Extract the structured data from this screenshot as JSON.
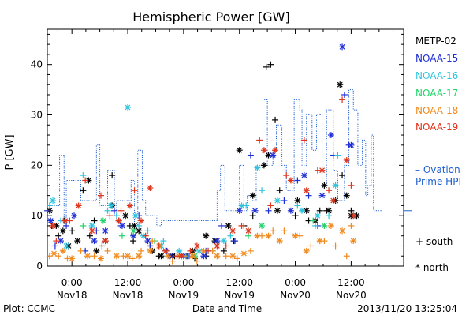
{
  "chart_data": {
    "type": "scatter",
    "title": "Hemispheric Power [GW]",
    "ylabel": "P [GW]",
    "xlabel": "Date and Time",
    "ylim": [
      0,
      47
    ],
    "yticks": [
      0,
      10,
      20,
      30,
      40
    ],
    "xlim": [
      -0.22,
      2.97
    ],
    "x_units": "days since 2013-11-18 00:00",
    "xticks": [
      {
        "x": 0.0,
        "top": "0:00",
        "bottom": "Nov18"
      },
      {
        "x": 0.5,
        "top": "12:00",
        "bottom": "Nov18"
      },
      {
        "x": 1.0,
        "top": "0:00",
        "bottom": "Nov19"
      },
      {
        "x": 1.5,
        "top": "12:00",
        "bottom": "Nov19"
      },
      {
        "x": 2.0,
        "top": "0:00",
        "bottom": "Nov20"
      },
      {
        "x": 2.5,
        "top": "12:00",
        "bottom": "Nov20"
      }
    ],
    "legend": {
      "placement": "right",
      "entries": [
        {
          "name": "METP-02",
          "color": "#000000"
        },
        {
          "name": "NOAA-15",
          "color": "#1f2fd6"
        },
        {
          "name": "NOAA-16",
          "color": "#2ec4df"
        },
        {
          "name": "NOAA-17",
          "color": "#22d46b"
        },
        {
          "name": "NOAA-18",
          "color": "#f08a1e"
        },
        {
          "name": "NOAA-19",
          "color": "#e0341c"
        }
      ],
      "ovation_label_1": "– Ovation",
      "ovation_label_2": "Prime HPI",
      "ovation_color": "#1e5fd0",
      "marker_south_label": "+ south",
      "marker_north_label": "* north"
    },
    "ovation_hpi": {
      "x": [
        -0.2,
        -0.13,
        -0.11,
        -0.07,
        -0.05,
        0.05,
        0.08,
        0.22,
        0.25,
        0.28,
        0.32,
        0.38,
        0.4,
        0.5,
        0.53,
        0.56,
        0.59,
        0.63,
        0.66,
        0.76,
        0.8,
        0.95,
        1.3,
        1.33,
        1.37,
        1.48,
        1.5,
        1.54,
        1.57,
        1.62,
        1.65,
        1.71,
        1.75,
        1.8,
        1.83,
        1.88,
        1.92,
        1.99,
        2.04,
        2.06,
        2.1,
        2.15,
        2.19,
        2.24,
        2.28,
        2.34,
        2.38,
        2.44,
        2.48,
        2.52,
        2.56,
        2.58,
        2.6,
        2.63,
        2.65,
        2.68,
        2.7,
        2.72
      ],
      "y": [
        12,
        12,
        22,
        8,
        17,
        17,
        13,
        24,
        12,
        12,
        19,
        10,
        13,
        13,
        17,
        8,
        23,
        13,
        10,
        8,
        9,
        9,
        15,
        20,
        11,
        11,
        20,
        11,
        14,
        13,
        20,
        33,
        20,
        23,
        28,
        20,
        15,
        33,
        31,
        20,
        30,
        23,
        30,
        16,
        31,
        19,
        13,
        20,
        35,
        31,
        20,
        20,
        25,
        14,
        16,
        26,
        11,
        11
      ]
    },
    "series": [
      {
        "name": "METP-02",
        "color": "#000000",
        "south": [
          [
            -0.18,
            8
          ],
          [
            -0.12,
            6
          ],
          [
            -0.07,
            9
          ],
          [
            0.0,
            7
          ],
          [
            0.1,
            15
          ],
          [
            0.16,
            6
          ],
          [
            0.2,
            9
          ],
          [
            0.27,
            4
          ],
          [
            0.36,
            18
          ],
          [
            0.42,
            9
          ],
          [
            0.52,
            8
          ],
          [
            0.55,
            5
          ],
          [
            0.7,
            4
          ],
          [
            0.78,
            2
          ],
          [
            0.84,
            3
          ],
          [
            0.92,
            2
          ],
          [
            1.03,
            2
          ],
          [
            1.1,
            1.5
          ],
          [
            1.2,
            2
          ],
          [
            1.36,
            3
          ],
          [
            1.45,
            5
          ],
          [
            1.54,
            8
          ],
          [
            1.62,
            10
          ],
          [
            1.74,
            39.5
          ],
          [
            1.78,
            40
          ],
          [
            1.82,
            29
          ],
          [
            1.86,
            15
          ],
          [
            2.0,
            10
          ],
          [
            2.12,
            9
          ],
          [
            2.22,
            11
          ],
          [
            2.28,
            11
          ],
          [
            2.34,
            13
          ],
          [
            2.42,
            18
          ],
          [
            2.5,
            11
          ]
        ],
        "north": [
          [
            -0.2,
            11
          ],
          [
            -0.14,
            8
          ],
          [
            -0.08,
            7
          ],
          [
            -0.03,
            4
          ],
          [
            0.05,
            5
          ],
          [
            0.15,
            17
          ],
          [
            0.22,
            3
          ],
          [
            0.3,
            5
          ],
          [
            0.36,
            12
          ],
          [
            0.48,
            10
          ],
          [
            0.56,
            8
          ],
          [
            0.6,
            7
          ],
          [
            0.72,
            3
          ],
          [
            0.8,
            2
          ],
          [
            0.9,
            2
          ],
          [
            0.98,
            2
          ],
          [
            1.08,
            3
          ],
          [
            1.2,
            6
          ],
          [
            1.28,
            5
          ],
          [
            1.4,
            8
          ],
          [
            1.5,
            23
          ],
          [
            1.62,
            14
          ],
          [
            1.72,
            20
          ],
          [
            1.76,
            22
          ],
          [
            1.84,
            11
          ],
          [
            2.02,
            13
          ],
          [
            2.1,
            11
          ],
          [
            2.18,
            9
          ],
          [
            2.26,
            16
          ],
          [
            2.3,
            11
          ],
          [
            2.36,
            13
          ],
          [
            2.4,
            36
          ],
          [
            2.46,
            14
          ],
          [
            2.5,
            10
          ],
          [
            2.55,
            10
          ]
        ]
      },
      {
        "name": "NOAA-15",
        "color": "#1f2fd6",
        "south": [
          [
            -0.22,
            11
          ],
          [
            -0.15,
            4
          ],
          [
            -0.05,
            8
          ],
          [
            0.12,
            3
          ],
          [
            0.22,
            7
          ],
          [
            0.38,
            11
          ],
          [
            0.44,
            8
          ],
          [
            0.6,
            10
          ],
          [
            0.7,
            4
          ],
          [
            0.85,
            3
          ],
          [
            1.05,
            2
          ],
          [
            1.2,
            3
          ],
          [
            1.34,
            8
          ],
          [
            1.46,
            5
          ],
          [
            1.6,
            22
          ],
          [
            1.76,
            11
          ],
          [
            1.9,
            13
          ],
          [
            2.02,
            17
          ],
          [
            2.12,
            14
          ],
          [
            2.2,
            8
          ],
          [
            2.34,
            22
          ],
          [
            2.44,
            34
          ],
          [
            2.48,
            24
          ]
        ],
        "north": [
          [
            -0.19,
            9
          ],
          [
            -0.1,
            5
          ],
          [
            0.02,
            10
          ],
          [
            0.2,
            5
          ],
          [
            0.3,
            7
          ],
          [
            0.45,
            8
          ],
          [
            0.55,
            6
          ],
          [
            0.68,
            5
          ],
          [
            0.88,
            2
          ],
          [
            1.0,
            2
          ],
          [
            1.18,
            2
          ],
          [
            1.3,
            5
          ],
          [
            1.5,
            11
          ],
          [
            1.64,
            11
          ],
          [
            1.8,
            22
          ],
          [
            1.96,
            11
          ],
          [
            2.08,
            18
          ],
          [
            2.24,
            14
          ],
          [
            2.32,
            26
          ],
          [
            2.42,
            43.5
          ],
          [
            2.5,
            24
          ]
        ]
      },
      {
        "name": "NOAA-16",
        "color": "#2ec4df",
        "south": [
          [
            -0.2,
            12
          ],
          [
            -0.1,
            9
          ],
          [
            0.1,
            18
          ],
          [
            0.32,
            11
          ],
          [
            0.4,
            10
          ],
          [
            0.6,
            8
          ],
          [
            0.68,
            7
          ],
          [
            0.82,
            5
          ],
          [
            1.02,
            2
          ],
          [
            1.22,
            3
          ],
          [
            1.42,
            6
          ],
          [
            1.56,
            12
          ],
          [
            1.7,
            15
          ],
          [
            2.02,
            12
          ],
          [
            2.18,
            8
          ],
          [
            2.3,
            10
          ],
          [
            2.38,
            22
          ]
        ],
        "north": [
          [
            -0.17,
            13
          ],
          [
            -0.05,
            4
          ],
          [
            0.18,
            8
          ],
          [
            0.35,
            12
          ],
          [
            0.5,
            31.5
          ],
          [
            0.57,
            10
          ],
          [
            0.64,
            6
          ],
          [
            0.8,
            4
          ],
          [
            0.96,
            3
          ],
          [
            1.14,
            3
          ],
          [
            1.36,
            5
          ],
          [
            1.52,
            12
          ],
          [
            1.66,
            19.5
          ],
          [
            1.84,
            13
          ],
          [
            2.06,
            11
          ],
          [
            2.2,
            10
          ],
          [
            2.36,
            16
          ]
        ]
      },
      {
        "name": "NOAA-17",
        "color": "#22d46b",
        "south": [
          [
            0.1,
            8
          ],
          [
            0.45,
            6
          ],
          [
            0.74,
            5
          ],
          [
            1.26,
            3
          ],
          [
            1.58,
            6
          ],
          [
            2.16,
            9
          ]
        ],
        "north": [
          [
            0.28,
            9
          ],
          [
            0.55,
            7
          ],
          [
            1.1,
            2
          ],
          [
            1.7,
            8
          ],
          [
            2.26,
            8
          ]
        ]
      },
      {
        "name": "NOAA-18",
        "color": "#f08a1e",
        "south": [
          [
            -0.2,
            2
          ],
          [
            -0.12,
            2
          ],
          [
            -0.04,
            1.5
          ],
          [
            0.08,
            3
          ],
          [
            0.2,
            2
          ],
          [
            0.32,
            3
          ],
          [
            0.46,
            2
          ],
          [
            0.54,
            1.5
          ],
          [
            0.62,
            3
          ],
          [
            0.72,
            5
          ],
          [
            0.8,
            4
          ],
          [
            0.9,
            1
          ],
          [
            1.0,
            2
          ],
          [
            1.12,
            1
          ],
          [
            1.26,
            3
          ],
          [
            1.38,
            2
          ],
          [
            1.48,
            1.5
          ],
          [
            1.6,
            3
          ],
          [
            1.7,
            6
          ],
          [
            1.8,
            7
          ],
          [
            1.9,
            7
          ],
          [
            2.04,
            6
          ],
          [
            2.14,
            4
          ],
          [
            2.26,
            5
          ],
          [
            2.36,
            4
          ],
          [
            2.46,
            2
          ],
          [
            2.5,
            8
          ]
        ],
        "north": [
          [
            -0.16,
            2.5
          ],
          [
            -0.08,
            3
          ],
          [
            0.0,
            1.5
          ],
          [
            0.14,
            2
          ],
          [
            0.26,
            1.5
          ],
          [
            0.4,
            2
          ],
          [
            0.5,
            2
          ],
          [
            0.6,
            2
          ],
          [
            0.7,
            3
          ],
          [
            0.78,
            4
          ],
          [
            0.86,
            2
          ],
          [
            0.96,
            2
          ],
          [
            1.08,
            2
          ],
          [
            1.18,
            3
          ],
          [
            1.3,
            2
          ],
          [
            1.44,
            2
          ],
          [
            1.54,
            2.5
          ],
          [
            1.66,
            6
          ],
          [
            1.76,
            6
          ],
          [
            1.86,
            5
          ],
          [
            2.0,
            6
          ],
          [
            2.1,
            3
          ],
          [
            2.22,
            5
          ],
          [
            2.32,
            8
          ],
          [
            2.42,
            7
          ],
          [
            2.52,
            5
          ]
        ]
      },
      {
        "name": "NOAA-19",
        "color": "#e0341c",
        "south": [
          [
            -0.14,
            5
          ],
          [
            -0.02,
            9
          ],
          [
            0.12,
            17
          ],
          [
            0.26,
            14
          ],
          [
            0.34,
            10
          ],
          [
            0.44,
            11
          ],
          [
            0.56,
            15
          ],
          [
            0.66,
            6
          ],
          [
            0.78,
            4
          ],
          [
            0.94,
            2
          ],
          [
            1.06,
            3
          ],
          [
            1.22,
            3
          ],
          [
            1.38,
            4
          ],
          [
            1.52,
            8
          ],
          [
            1.68,
            25
          ],
          [
            1.78,
            12
          ],
          [
            1.92,
            18
          ],
          [
            2.08,
            25
          ],
          [
            2.2,
            19
          ],
          [
            2.3,
            15
          ],
          [
            2.42,
            33
          ],
          [
            2.5,
            16
          ]
        ],
        "north": [
          [
            -0.17,
            8
          ],
          [
            -0.06,
            9
          ],
          [
            0.06,
            12
          ],
          [
            0.18,
            7
          ],
          [
            0.3,
            5
          ],
          [
            0.42,
            9
          ],
          [
            0.52,
            12
          ],
          [
            0.62,
            9
          ],
          [
            0.7,
            15.5
          ],
          [
            0.84,
            3
          ],
          [
            0.98,
            2
          ],
          [
            1.12,
            4
          ],
          [
            1.3,
            4
          ],
          [
            1.44,
            7
          ],
          [
            1.58,
            7
          ],
          [
            1.72,
            23
          ],
          [
            1.82,
            23
          ],
          [
            1.96,
            17
          ],
          [
            2.1,
            15
          ],
          [
            2.24,
            19
          ],
          [
            2.34,
            13
          ],
          [
            2.46,
            21
          ],
          [
            2.52,
            10
          ]
        ]
      }
    ],
    "footer": {
      "plot_credit": "Plot: CCMC",
      "timestamp": "2013/11/20 13:25:04"
    }
  }
}
